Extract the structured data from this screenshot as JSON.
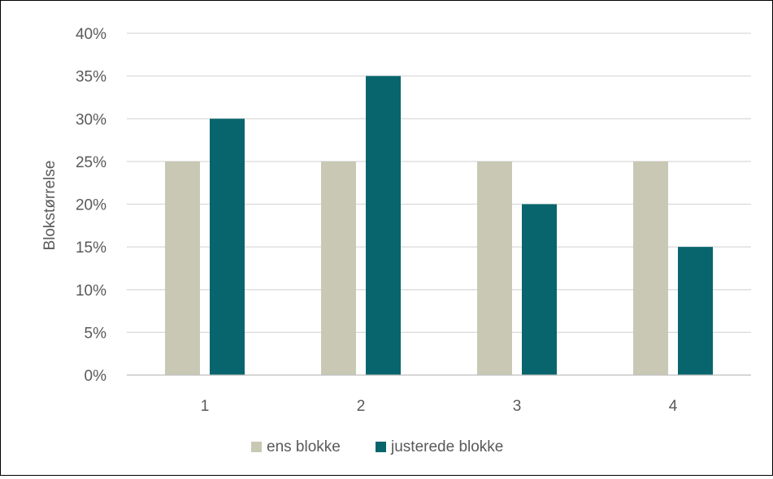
{
  "chart_data": {
    "type": "bar",
    "categories": [
      "1",
      "2",
      "3",
      "4"
    ],
    "series": [
      {
        "name": "ens blokke",
        "values": [
          0.25,
          0.25,
          0.25,
          0.25
        ],
        "color": "#C8C8B4"
      },
      {
        "name": "justerede blokke",
        "values": [
          0.3,
          0.35,
          0.2,
          0.15
        ],
        "color": "#08656D"
      }
    ],
    "ylabel": "Blokstørrelse",
    "ylim": [
      0,
      0.4
    ],
    "yticks": [
      "0%",
      "5%",
      "10%",
      "15%",
      "20%",
      "25%",
      "30%",
      "35%",
      "40%"
    ],
    "ytick_values": [
      0,
      0.05,
      0.1,
      0.15,
      0.2,
      0.25,
      0.3,
      0.35,
      0.4
    ],
    "grid": true,
    "legend_position": "bottom",
    "colors": {
      "gridline": "#D9D9D9",
      "axis": "#BFBFBF",
      "text": "#595959"
    }
  }
}
